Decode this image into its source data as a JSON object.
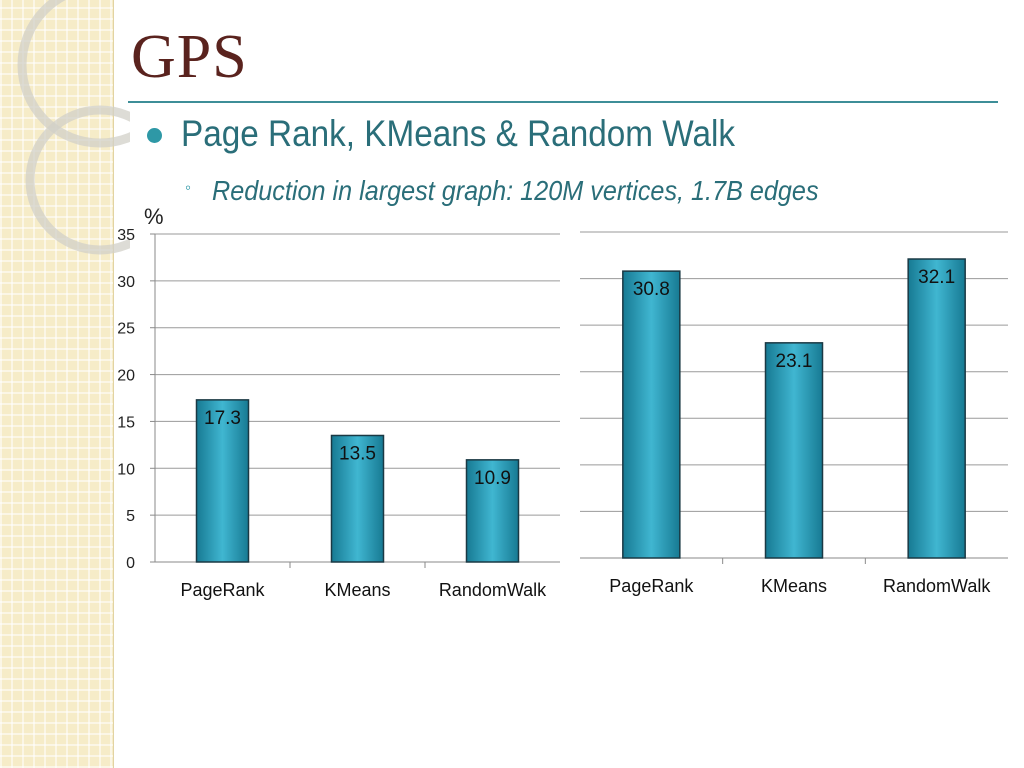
{
  "slide": {
    "title": "GPS",
    "bullet": "Page Rank, KMeans & Random Walk",
    "sub_bullet_marker": "◦",
    "sub_bullet": "Reduction in largest graph: 120M vertices, 1.7B edges"
  },
  "colors": {
    "title": "#5a231e",
    "accent": "#2e98a6",
    "bar": "#2a9bb7",
    "bar_edge": "#1a3944",
    "text": "#2a6e79"
  },
  "chart_data": [
    {
      "type": "bar",
      "ylabel": "%",
      "categories": [
        "PageRank",
        "KMeans",
        "RandomWalk"
      ],
      "values": [
        17.3,
        13.5,
        10.9
      ],
      "data_labels": [
        "17.3",
        "13.5",
        "10.9"
      ],
      "ylim": [
        0,
        35
      ],
      "yticks": [
        0,
        5,
        10,
        15,
        20,
        25,
        30,
        35
      ],
      "ytick_labels": [
        "0",
        "5",
        "10",
        "15",
        "20",
        "25",
        "30",
        "35"
      ],
      "grid": true
    },
    {
      "type": "bar",
      "categories": [
        "PageRank",
        "KMeans",
        "RandomWalk"
      ],
      "values": [
        30.8,
        23.1,
        32.1
      ],
      "data_labels": [
        "30.8",
        "23.1",
        "32.1"
      ],
      "ylim": [
        0,
        35
      ],
      "grid": true
    }
  ]
}
